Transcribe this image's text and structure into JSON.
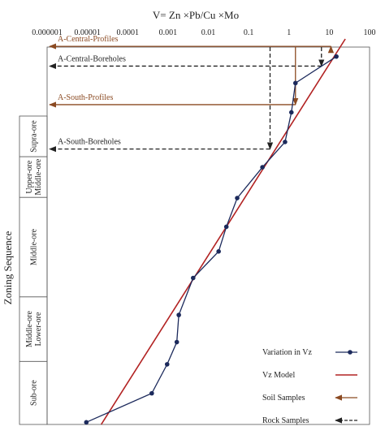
{
  "chart_data": {
    "type": "line",
    "title": "V= Zn ×Pb/Cu ×Mo",
    "ylabel": "Zoning Sequence",
    "x_scale": "log",
    "xlim": [
      1e-06,
      100
    ],
    "x_ticks": [
      "0.000001",
      "0.00001",
      "0.0001",
      "0.001",
      "0.01",
      "0.1",
      "1",
      "10",
      "100"
    ],
    "x_tick_values": [
      1e-06,
      1e-05,
      0.0001,
      0.001,
      0.01,
      0.1,
      1,
      10,
      100
    ],
    "zones": [
      {
        "label": "Supra-ore",
        "top": 0.0,
        "bottom": 0.1318
      },
      {
        "label": "Upper-ore Middle-ore",
        "top": 0.1318,
        "bottom": 0.2636
      },
      {
        "label": "Middle-ore",
        "top": 0.2636,
        "bottom": 0.5864
      },
      {
        "label": "Middle-ore Lower-ore",
        "top": 0.5864,
        "bottom": 0.7955
      },
      {
        "label": "Sub-ore",
        "top": 0.7955,
        "bottom": 1.0
      }
    ],
    "series": [
      {
        "name": "Variation in Vz",
        "color": "#1c2a5c",
        "points": [
          {
            "x": 15,
            "y": -0.193
          },
          {
            "x": 1.45,
            "y": -0.107
          },
          {
            "x": 1.15,
            "y": -0.012
          },
          {
            "x": 0.8,
            "y": 0.084
          },
          {
            "x": 0.22,
            "y": 0.166
          },
          {
            "x": 0.052,
            "y": 0.266
          },
          {
            "x": 0.028,
            "y": 0.359
          },
          {
            "x": 0.018,
            "y": 0.439
          },
          {
            "x": 0.0042,
            "y": 0.525
          },
          {
            "x": 0.00185,
            "y": 0.645
          },
          {
            "x": 0.00165,
            "y": 0.733
          },
          {
            "x": 0.00095,
            "y": 0.805
          },
          {
            "x": 0.000395,
            "y": 0.899
          },
          {
            "x": 9.4e-06,
            "y": 0.993
          }
        ]
      },
      {
        "name": "Vz Model",
        "color": "#b22222",
        "line": [
          {
            "x": 2.2e-05,
            "y": 1.05
          },
          {
            "x": 25,
            "y": -0.25
          }
        ]
      }
    ],
    "reference_lines": [
      {
        "label": "A-Central-Profiles",
        "kind": "soil",
        "x": 11,
        "y": -0.226
      },
      {
        "label": "A-Central-Boreholes",
        "kind": "rock",
        "x": 6.4,
        "y": -0.162
      },
      {
        "label": "A-South-Profiles",
        "kind": "soil",
        "x": 1.45,
        "y": -0.037
      },
      {
        "label": "A-South-Boreholes",
        "kind": "rock",
        "x": 0.34,
        "y": 0.107
      }
    ],
    "legend": {
      "position": "bottom-right",
      "items": [
        {
          "label": "Variation in Vz",
          "kind": "marker-line",
          "color": "#1c2a5c"
        },
        {
          "label": "Vz Model",
          "kind": "line",
          "color": "#b22222"
        },
        {
          "label": "Soil Samples",
          "kind": "arrow-solid",
          "color": "#8b4a22"
        },
        {
          "label": "Rock Samples",
          "kind": "arrow-dashed",
          "color": "#222222"
        }
      ]
    },
    "colors": {
      "soil": "#8b4a22",
      "rock": "#222222",
      "series": "#1c2a5c",
      "model": "#b22222"
    }
  }
}
